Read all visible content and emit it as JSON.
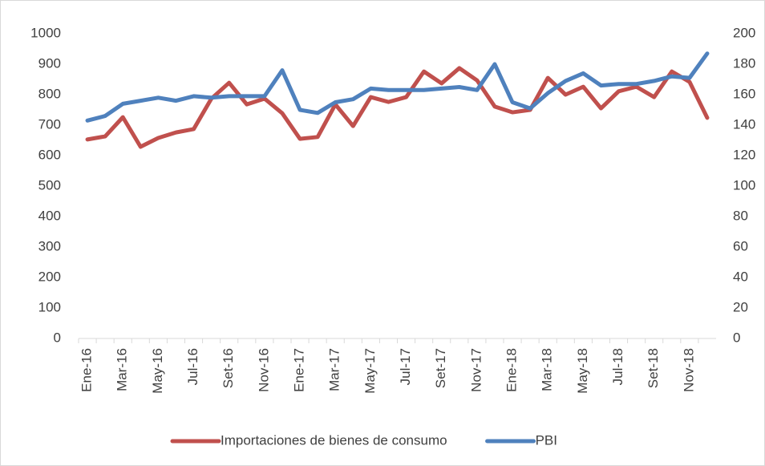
{
  "chart_data": {
    "type": "line",
    "categories": [
      "Ene-16",
      null,
      "Mar-16",
      null,
      "May-16",
      null,
      "Jul-16",
      null,
      "Set-16",
      null,
      "Nov-16",
      null,
      "Ene-17",
      null,
      "Mar-17",
      null,
      "May-17",
      null,
      "Jul-17",
      null,
      "Set-17",
      null,
      "Nov-17",
      null,
      "Ene-18",
      null,
      "Mar-18",
      null,
      "May-18",
      null,
      "Jul-18",
      null,
      "Set-18",
      null,
      "Nov-18",
      null
    ],
    "series": [
      {
        "name": "Importaciones de bienes de consumo",
        "color": "#c0504d",
        "values": [
          653,
          663,
          726,
          629,
          658,
          676,
          687,
          787,
          839,
          768,
          787,
          739,
          655,
          661,
          768,
          697,
          792,
          776,
          792,
          876,
          837,
          887,
          847,
          761,
          742,
          750,
          855,
          800,
          826,
          755,
          811,
          826,
          792,
          876,
          842,
          724
        ]
      },
      {
        "name": "PBI",
        "color": "#4f81bd",
        "axis": "y2",
        "values": [
          143,
          146,
          154,
          156,
          158,
          156,
          159,
          158,
          159,
          159,
          159,
          176,
          150,
          148,
          155,
          157,
          164,
          163,
          163,
          163,
          164,
          165,
          163,
          180,
          155,
          151,
          161,
          169,
          174,
          166,
          167,
          167,
          169,
          172,
          171,
          187
        ]
      }
    ],
    "ylim": [
      0,
      1000
    ],
    "yticks": [
      0,
      100,
      200,
      300,
      400,
      500,
      600,
      700,
      800,
      900,
      1000
    ],
    "y2lim": [
      0,
      200
    ],
    "y2ticks": [
      0,
      20,
      40,
      60,
      80,
      100,
      120,
      140,
      160,
      180,
      200
    ],
    "grid": false,
    "legend": "bottom"
  }
}
